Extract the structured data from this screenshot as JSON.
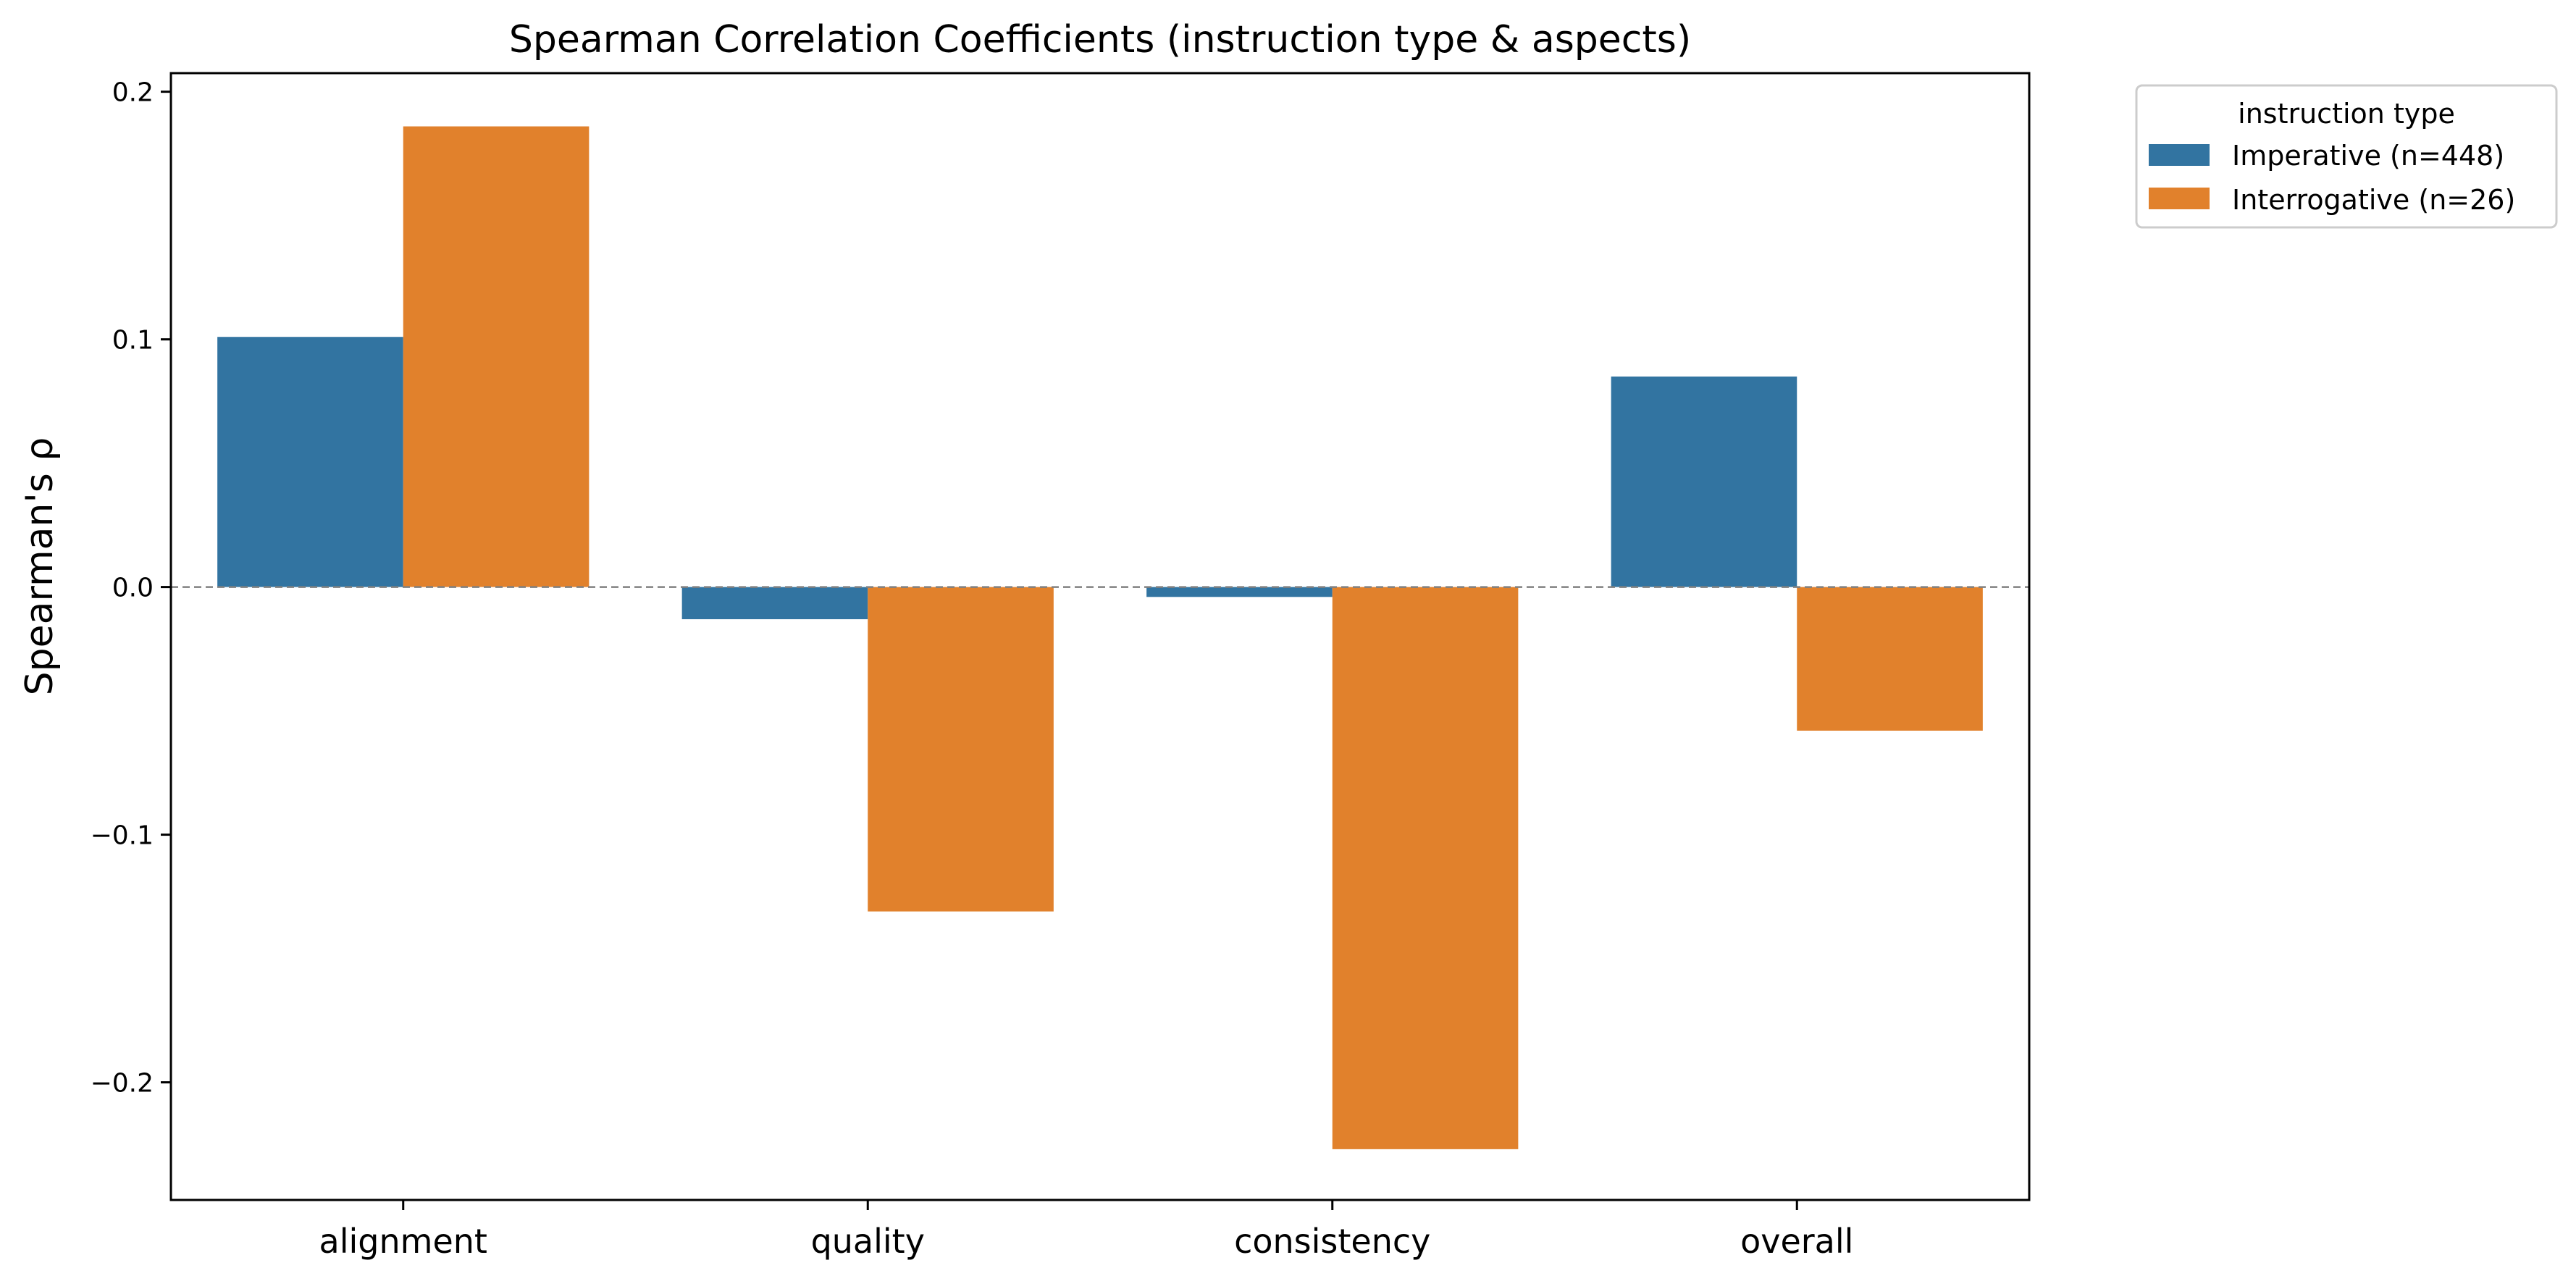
{
  "chart_data": {
    "type": "bar",
    "title": "Spearman Correlation Coefficients (instruction type & aspects)",
    "xlabel": "",
    "ylabel": "Spearman's ρ",
    "categories": [
      "alignment",
      "quality",
      "consistency",
      "overall"
    ],
    "series": [
      {
        "name": "Imperative (n=448)",
        "color": "#3274a1",
        "values": [
          0.101,
          -0.013,
          -0.004,
          0.085
        ]
      },
      {
        "name": "Interrogative (n=26)",
        "color": "#e1812c",
        "values": [
          0.186,
          -0.131,
          -0.227,
          -0.058
        ]
      }
    ],
    "ylim": [
      -0.2475,
      0.2075
    ],
    "yticks": [
      0.2,
      0.1,
      0.0,
      -0.1,
      -0.2
    ],
    "ytick_labels": [
      "0.2",
      "0.1",
      "0.0",
      "−0.1",
      "−0.2"
    ],
    "zero_line": {
      "style": "dashed",
      "color": "#808080"
    },
    "grid": false,
    "legend": {
      "title": "instruction type",
      "placement": "outside top-right"
    }
  }
}
